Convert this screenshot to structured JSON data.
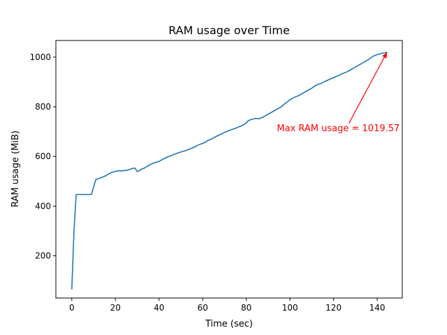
{
  "chart_data": {
    "type": "line",
    "title": "RAM usage over Time",
    "xlabel": "Time (sec)",
    "ylabel": "RAM usage (MiB)",
    "xlim": [
      -7.3,
      151.5
    ],
    "ylim": [
      30,
      1067
    ],
    "xticks": [
      0,
      20,
      40,
      60,
      80,
      100,
      120,
      140
    ],
    "yticks": [
      200,
      400,
      600,
      800,
      1000
    ],
    "grid": false,
    "series": [
      {
        "color": "#1f77b4",
        "x": [
          0,
          1,
          2,
          3,
          5,
          7,
          9,
          11,
          13,
          15,
          17,
          19,
          21,
          23,
          25,
          27,
          28,
          29,
          30,
          31,
          32,
          33,
          34,
          35,
          36,
          38,
          40,
          42,
          44,
          46,
          48,
          50,
          52,
          54,
          56,
          58,
          60,
          61,
          62,
          64,
          66,
          68,
          70,
          72,
          74,
          76,
          78,
          80,
          81,
          82,
          84,
          86,
          88,
          90,
          92,
          94,
          96,
          98,
          100,
          102,
          104,
          106,
          108,
          110,
          112,
          114,
          116,
          118,
          120,
          122,
          124,
          126,
          128,
          130,
          132,
          134,
          136,
          138,
          140,
          142,
          144.5
        ],
        "y": [
          65,
          300,
          447,
          447,
          447,
          447,
          447,
          507,
          513,
          520,
          530,
          538,
          542,
          542,
          544,
          549,
          552,
          553,
          539,
          543,
          549,
          552,
          557,
          563,
          568,
          575,
          580,
          590,
          598,
          605,
          612,
          618,
          623,
          630,
          637,
          646,
          653,
          656,
          663,
          670,
          680,
          688,
          697,
          704,
          710,
          717,
          724,
          735,
          745,
          748,
          753,
          752,
          760,
          770,
          780,
          790,
          800,
          815,
          828,
          838,
          845,
          855,
          865,
          875,
          887,
          893,
          902,
          910,
          917,
          925,
          933,
          940,
          950,
          960,
          970,
          980,
          990,
          1003,
          1010,
          1015,
          1019.57
        ]
      }
    ],
    "annotation": {
      "text": "Max RAM usage = 1019.57",
      "color": "#ff0000",
      "xy": [
        144.5,
        1019.57
      ],
      "xytext": [
        94,
        713
      ]
    }
  }
}
